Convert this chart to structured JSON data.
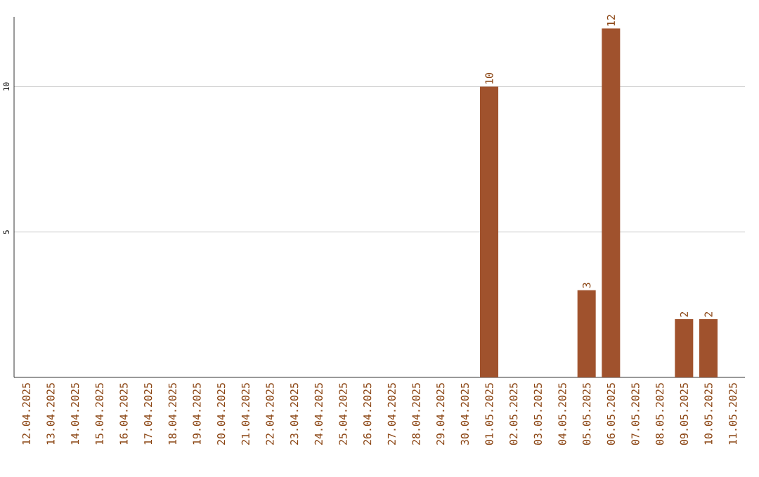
{
  "chart_data": {
    "type": "bar",
    "categories": [
      "12.04.2025",
      "13.04.2025",
      "14.04.2025",
      "15.04.2025",
      "16.04.2025",
      "17.04.2025",
      "18.04.2025",
      "19.04.2025",
      "20.04.2025",
      "21.04.2025",
      "22.04.2025",
      "23.04.2025",
      "24.04.2025",
      "25.04.2025",
      "26.04.2025",
      "27.04.2025",
      "28.04.2025",
      "29.04.2025",
      "30.04.2025",
      "01.05.2025",
      "02.05.2025",
      "03.05.2025",
      "04.05.2025",
      "05.05.2025",
      "06.05.2025",
      "07.05.2025",
      "08.05.2025",
      "09.05.2025",
      "10.05.2025",
      "11.05.2025"
    ],
    "values": [
      0,
      0,
      0,
      0,
      0,
      0,
      0,
      0,
      0,
      0,
      0,
      0,
      0,
      0,
      0,
      0,
      0,
      0,
      0,
      10,
      0,
      0,
      0,
      3,
      12,
      0,
      0,
      2,
      2,
      0
    ],
    "value_labels": [
      null,
      null,
      null,
      null,
      null,
      null,
      null,
      null,
      null,
      null,
      null,
      null,
      null,
      null,
      null,
      null,
      null,
      null,
      null,
      "10",
      null,
      null,
      null,
      "3",
      "12",
      null,
      null,
      "2",
      "2",
      null
    ],
    "color": "#a0522d",
    "ylim": [
      0,
      12.4
    ],
    "yticks": [
      5,
      10
    ],
    "grid": "y"
  }
}
